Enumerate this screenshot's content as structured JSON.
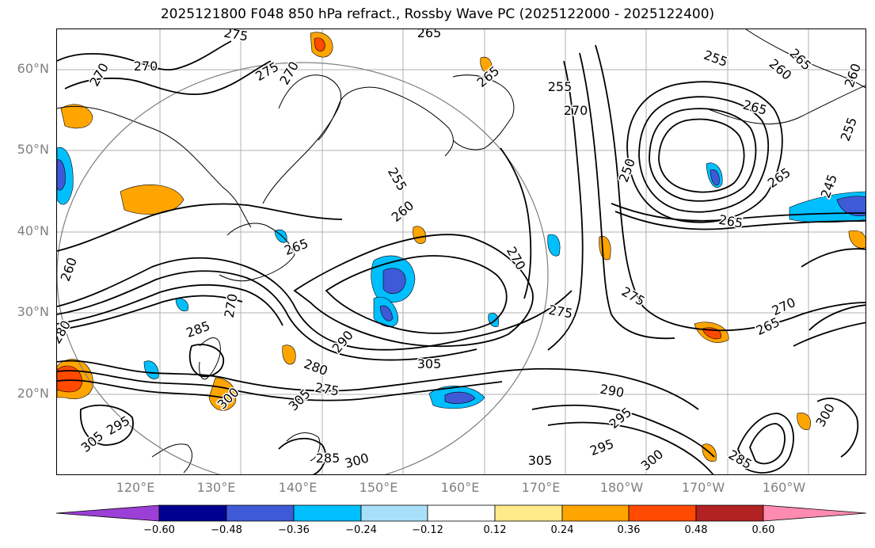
{
  "title": "2025121800 F048 850 hPa refract., Rossby Wave PC (2025122000 - 2025122400)",
  "map": {
    "lat_labels": [
      "60°N",
      "50°N",
      "40°N",
      "30°N",
      "20°N"
    ],
    "lon_labels": [
      "120°E",
      "130°E",
      "140°E",
      "150°E",
      "160°E",
      "170°E",
      "180°W",
      "170°W",
      "160°W"
    ],
    "contour_labels": [
      "275",
      "265",
      "270",
      "270",
      "275",
      "270",
      "265",
      "255",
      "265",
      "260",
      "255",
      "270",
      "265",
      "260",
      "255",
      "265",
      "250",
      "245",
      "265",
      "260",
      "255",
      "265",
      "260",
      "270",
      "275",
      "275",
      "270",
      "265",
      "280",
      "285",
      "270",
      "290",
      "305",
      "280",
      "275",
      "290",
      "295",
      "300",
      "305",
      "295",
      "305",
      "285",
      "300",
      "305",
      "295",
      "300",
      "285",
      "300"
    ]
  },
  "colorbar": {
    "ticks": [
      "−0.60",
      "−0.48",
      "−0.36",
      "−0.24",
      "−0.12",
      "0.12",
      "0.24",
      "0.36",
      "0.48",
      "0.60"
    ],
    "colors": [
      "#9c3fd6",
      "#000090",
      "#3f5ad6",
      "#00bfff",
      "#a8e0fa",
      "#ffffff",
      "#ffeb8a",
      "#ffa500",
      "#ff4a00",
      "#b22222",
      "#ff8cb0"
    ]
  }
}
